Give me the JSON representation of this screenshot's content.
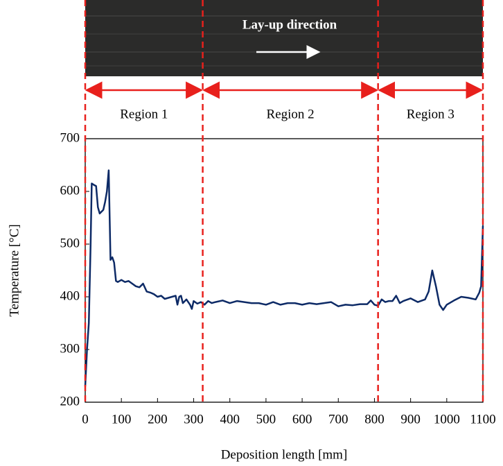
{
  "chart_data": {
    "type": "line",
    "image_caption": "Lay-up direction",
    "xlabel": "Deposition length [mm]",
    "ylabel": "Temperature [°C]",
    "regions": [
      {
        "label": "Region 1",
        "start": 0,
        "end": 325
      },
      {
        "label": "Region 2",
        "start": 325,
        "end": 810
      },
      {
        "label": "Region 3",
        "start": 810,
        "end": 1100
      }
    ],
    "color": "#0d2a66",
    "x": [
      0,
      5,
      10,
      15,
      18,
      25,
      30,
      35,
      40,
      50,
      55,
      60,
      65,
      70,
      75,
      80,
      85,
      90,
      100,
      110,
      120,
      130,
      140,
      150,
      160,
      170,
      180,
      190,
      200,
      210,
      220,
      230,
      240,
      250,
      255,
      260,
      265,
      270,
      280,
      290,
      295,
      300,
      310,
      320,
      330,
      340,
      350,
      360,
      380,
      400,
      420,
      440,
      460,
      480,
      500,
      520,
      540,
      560,
      580,
      600,
      620,
      640,
      660,
      680,
      700,
      720,
      740,
      760,
      780,
      790,
      800,
      810,
      820,
      830,
      840,
      850,
      860,
      870,
      880,
      900,
      920,
      940,
      950,
      960,
      970,
      980,
      990,
      1000,
      1020,
      1040,
      1060,
      1080,
      1090,
      1095,
      1100
    ],
    "values": [
      230,
      300,
      350,
      500,
      615,
      612,
      610,
      570,
      558,
      565,
      580,
      600,
      640,
      470,
      475,
      465,
      430,
      428,
      432,
      428,
      430,
      425,
      420,
      418,
      425,
      410,
      408,
      405,
      400,
      402,
      396,
      398,
      400,
      402,
      385,
      400,
      402,
      388,
      395,
      385,
      377,
      392,
      387,
      390,
      385,
      392,
      388,
      390,
      393,
      388,
      392,
      390,
      388,
      388,
      385,
      390,
      385,
      388,
      388,
      385,
      388,
      386,
      388,
      390,
      382,
      385,
      384,
      386,
      386,
      393,
      385,
      383,
      395,
      390,
      392,
      392,
      402,
      388,
      392,
      397,
      390,
      395,
      410,
      450,
      420,
      385,
      375,
      385,
      393,
      400,
      398,
      395,
      408,
      420,
      535
    ],
    "xlim": [
      0,
      1100
    ],
    "xticks": [
      0,
      100,
      200,
      300,
      400,
      500,
      600,
      700,
      800,
      900,
      1000,
      1100
    ],
    "ylim": [
      200,
      700
    ],
    "yticks": [
      200,
      300,
      400,
      500,
      600,
      700
    ]
  }
}
